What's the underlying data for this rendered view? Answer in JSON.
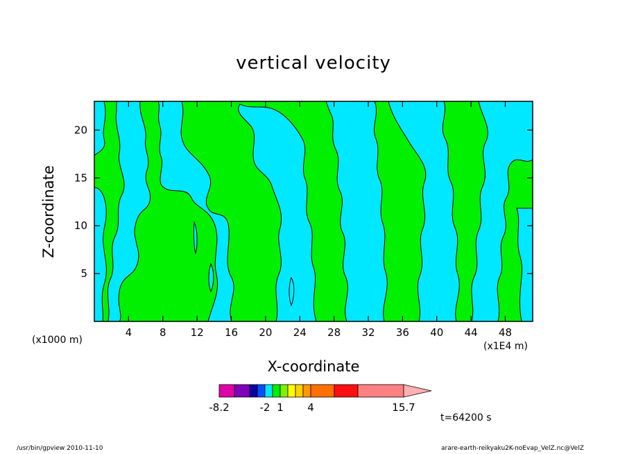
{
  "chart_data": {
    "type": "heatmap",
    "title": "vertical velocity",
    "xlabel": "X-coordinate",
    "ylabel": "Z-coordinate",
    "x_unit_left": "(x1000 m)",
    "x_unit_right": "(x1E4 m)",
    "xlim": [
      0,
      51.2
    ],
    "ylim": [
      0,
      23
    ],
    "x_ticks": [
      "4",
      "8",
      "12",
      "16",
      "20",
      "24",
      "28",
      "32",
      "36",
      "40",
      "44",
      "48"
    ],
    "y_ticks": [
      "5",
      "10",
      "15",
      "20"
    ],
    "x_tick_values": [
      4,
      8,
      12,
      16,
      20,
      24,
      28,
      32,
      36,
      40,
      44,
      48
    ],
    "y_tick_values": [
      5,
      10,
      15,
      20
    ],
    "colors": {
      "negative_region": "#00e8ff",
      "positive_region": "#00f000",
      "contour_line": "#000000"
    },
    "colorbar": {
      "labels": [
        "-8.2",
        "-2",
        "1",
        "4",
        "15.7"
      ],
      "label_values": [
        -8.2,
        -2,
        1,
        4,
        15.7
      ],
      "bins": [
        {
          "color": "#e000a8",
          "lo": -8.2,
          "hi": -5.8
        },
        {
          "color": "#8000b8",
          "lo": -5.8,
          "hi": -3.4
        },
        {
          "color": "#1000a0",
          "lo": -3.4,
          "hi": -2.6
        },
        {
          "color": "#0050ff",
          "lo": -2.6,
          "hi": -2.0
        },
        {
          "color": "#00e8ff",
          "lo": -2.0,
          "hi": -0.5
        },
        {
          "color": "#00f000",
          "lo": -0.5,
          "hi": 0.5
        },
        {
          "color": "#80f000",
          "lo": 0.5,
          "hi": 1.0
        },
        {
          "color": "#ffff00",
          "lo": 1.0,
          "hi": 2.0
        },
        {
          "color": "#ffd000",
          "lo": 2.0,
          "hi": 3.0
        },
        {
          "color": "#ff9800",
          "lo": 3.0,
          "hi": 4.0
        },
        {
          "color": "#ff7000",
          "lo": 4.0,
          "hi": 7.0
        },
        {
          "color": "#ff1010",
          "lo": 7.0,
          "hi": 9.5
        },
        {
          "color": "#ff8080",
          "lo": 9.5,
          "hi": 15.7
        }
      ],
      "extend_color": "#ffb0b0"
    },
    "grid": false
  },
  "time_label": "t=64200 s",
  "footer": {
    "left": "/usr/bin/gpview   2010-11-10",
    "right": "arare-earth-reikyaku2K-noEvap_VelZ.nc@VelZ"
  }
}
